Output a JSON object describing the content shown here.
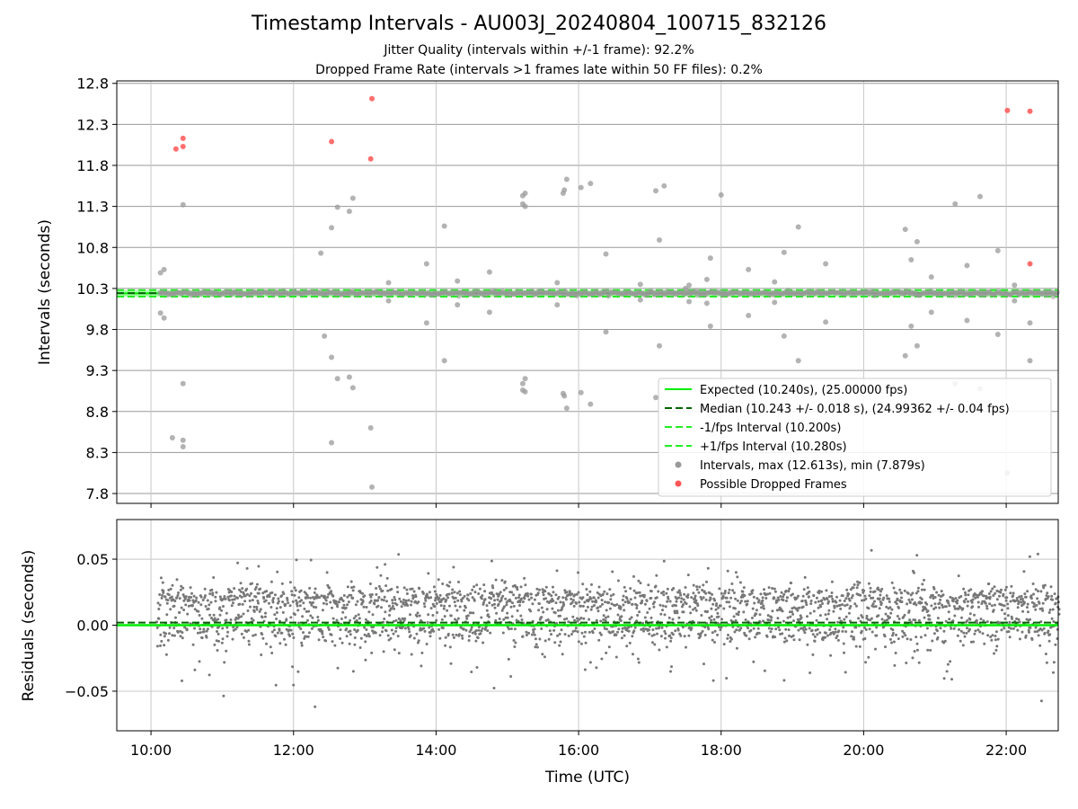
{
  "title": "Timestamp Intervals - AU003J_20240804_100715_832126",
  "subtitle_1": "Jitter Quality (intervals within +/-1 frame): 92.2%",
  "subtitle_2": "Dropped Frame Rate (intervals >1 frames late within 50 FF files): 0.2%",
  "colors": {
    "expected": "#00ee00",
    "median": "#006400",
    "interval_band": "#22ee22",
    "intervals": "#999999",
    "dropped": "#ff5555",
    "residuals": "#777777"
  },
  "chart_data": [
    {
      "type": "scatter",
      "ylabel": "Intervals (seconds)",
      "xlabel": "",
      "ylim": [
        7.68,
        12.83
      ],
      "xlim_hours": [
        9.52,
        22.73
      ],
      "x_ticks": [
        "10:00",
        "12:00",
        "14:00",
        "16:00",
        "18:00",
        "20:00",
        "22:00"
      ],
      "y_ticks": [
        "7.8",
        "8.3",
        "8.8",
        "9.3",
        "9.8",
        "10.3",
        "10.8",
        "11.3",
        "11.8",
        "12.3",
        "12.8"
      ],
      "grid": true,
      "legend_position": "bottom-right",
      "legend": [
        "Expected (10.240s), (25.00000 fps)",
        "Median (10.243 +/- 0.018 s), (24.99362 +/- 0.04 fps)",
        "-1/fps Interval (10.200s)",
        "+1/fps Interval (10.280s)",
        "Intervals, max (12.613s), min (7.879s)",
        "Possible Dropped Frames"
      ],
      "lines": {
        "expected": 10.24,
        "median": 10.243,
        "minus_one_fps": 10.2,
        "plus_one_fps": 10.28
      },
      "outlier_intervals": [
        {
          "x": "10:08",
          "y": 10.49
        },
        {
          "x": "10:11",
          "y": 10.53
        },
        {
          "x": "10:08",
          "y": 10.0
        },
        {
          "x": "10:11",
          "y": 9.94
        },
        {
          "x": "10:27",
          "y": 11.32
        },
        {
          "x": "10:27",
          "y": 9.14
        },
        {
          "x": "10:18",
          "y": 8.48
        },
        {
          "x": "10:27",
          "y": 8.45
        },
        {
          "x": "10:27",
          "y": 8.37
        },
        {
          "x": "12:23",
          "y": 10.73
        },
        {
          "x": "12:26",
          "y": 9.72
        },
        {
          "x": "12:32",
          "y": 11.04
        },
        {
          "x": "12:37",
          "y": 11.29
        },
        {
          "x": "12:32",
          "y": 9.46
        },
        {
          "x": "12:37",
          "y": 9.2
        },
        {
          "x": "12:47",
          "y": 11.24
        },
        {
          "x": "12:50",
          "y": 11.4
        },
        {
          "x": "12:47",
          "y": 9.22
        },
        {
          "x": "12:50",
          "y": 9.09
        },
        {
          "x": "12:32",
          "y": 8.42
        },
        {
          "x": "13:05",
          "y": 8.6
        },
        {
          "x": "13:06",
          "y": 7.879
        },
        {
          "x": "13:20",
          "y": 10.37
        },
        {
          "x": "13:20",
          "y": 10.15
        },
        {
          "x": "13:52",
          "y": 10.6
        },
        {
          "x": "13:52",
          "y": 9.88
        },
        {
          "x": "14:07",
          "y": 11.06
        },
        {
          "x": "14:07",
          "y": 9.42
        },
        {
          "x": "14:18",
          "y": 10.39
        },
        {
          "x": "14:18",
          "y": 10.1
        },
        {
          "x": "14:45",
          "y": 10.5
        },
        {
          "x": "14:45",
          "y": 10.01
        },
        {
          "x": "15:13",
          "y": 11.43
        },
        {
          "x": "15:15",
          "y": 11.46
        },
        {
          "x": "15:13",
          "y": 11.33
        },
        {
          "x": "15:15",
          "y": 11.3
        },
        {
          "x": "15:13",
          "y": 9.14
        },
        {
          "x": "15:15",
          "y": 9.2
        },
        {
          "x": "15:13",
          "y": 9.06
        },
        {
          "x": "15:15",
          "y": 9.04
        },
        {
          "x": "15:42",
          "y": 10.37
        },
        {
          "x": "15:42",
          "y": 10.1
        },
        {
          "x": "15:47",
          "y": 11.46
        },
        {
          "x": "15:48",
          "y": 11.5
        },
        {
          "x": "15:50",
          "y": 11.63
        },
        {
          "x": "15:47",
          "y": 9.02
        },
        {
          "x": "15:48",
          "y": 8.99
        },
        {
          "x": "15:50",
          "y": 8.84
        },
        {
          "x": "16:02",
          "y": 11.53
        },
        {
          "x": "16:02",
          "y": 9.03
        },
        {
          "x": "16:10",
          "y": 11.58
        },
        {
          "x": "16:10",
          "y": 8.89
        },
        {
          "x": "16:23",
          "y": 10.72
        },
        {
          "x": "16:23",
          "y": 9.77
        },
        {
          "x": "16:52",
          "y": 10.35
        },
        {
          "x": "16:52",
          "y": 10.16
        },
        {
          "x": "17:05",
          "y": 11.49
        },
        {
          "x": "17:12",
          "y": 11.55
        },
        {
          "x": "17:05",
          "y": 8.97
        },
        {
          "x": "17:08",
          "y": 10.89
        },
        {
          "x": "17:08",
          "y": 9.6
        },
        {
          "x": "17:30",
          "y": 10.3
        },
        {
          "x": "17:33",
          "y": 10.34
        },
        {
          "x": "17:33",
          "y": 10.14
        },
        {
          "x": "17:48",
          "y": 10.41
        },
        {
          "x": "17:48",
          "y": 10.12
        },
        {
          "x": "17:51",
          "y": 10.67
        },
        {
          "x": "17:51",
          "y": 9.84
        },
        {
          "x": "18:00",
          "y": 11.44
        },
        {
          "x": "18:23",
          "y": 10.53
        },
        {
          "x": "18:23",
          "y": 9.97
        },
        {
          "x": "18:45",
          "y": 10.38
        },
        {
          "x": "18:45",
          "y": 10.13
        },
        {
          "x": "18:53",
          "y": 10.74
        },
        {
          "x": "18:53",
          "y": 9.72
        },
        {
          "x": "19:05",
          "y": 11.05
        },
        {
          "x": "19:05",
          "y": 9.42
        },
        {
          "x": "19:28",
          "y": 10.6
        },
        {
          "x": "19:28",
          "y": 9.89
        },
        {
          "x": "20:35",
          "y": 11.02
        },
        {
          "x": "20:40",
          "y": 10.65
        },
        {
          "x": "20:45",
          "y": 10.87
        },
        {
          "x": "20:35",
          "y": 9.48
        },
        {
          "x": "20:40",
          "y": 9.84
        },
        {
          "x": "20:45",
          "y": 9.6
        },
        {
          "x": "20:57",
          "y": 10.44
        },
        {
          "x": "20:57",
          "y": 10.01
        },
        {
          "x": "21:17",
          "y": 11.33
        },
        {
          "x": "21:17",
          "y": 9.14
        },
        {
          "x": "21:27",
          "y": 10.58
        },
        {
          "x": "21:27",
          "y": 9.91
        },
        {
          "x": "21:38",
          "y": 11.42
        },
        {
          "x": "21:38",
          "y": 9.08
        },
        {
          "x": "21:53",
          "y": 10.76
        },
        {
          "x": "21:53",
          "y": 9.74
        },
        {
          "x": "22:07",
          "y": 10.34
        },
        {
          "x": "22:07",
          "y": 10.15
        },
        {
          "x": "22:01",
          "y": 8.05
        },
        {
          "x": "22:20",
          "y": 9.88
        },
        {
          "x": "22:20",
          "y": 9.42
        }
      ],
      "dropped_frames": [
        {
          "x": "10:21",
          "y": 12.0
        },
        {
          "x": "10:27",
          "y": 12.13
        },
        {
          "x": "10:27",
          "y": 12.03
        },
        {
          "x": "12:32",
          "y": 12.09
        },
        {
          "x": "13:06",
          "y": 12.613
        },
        {
          "x": "13:05",
          "y": 11.88
        },
        {
          "x": "22:01",
          "y": 12.47
        },
        {
          "x": "22:20",
          "y": 12.46
        },
        {
          "x": "22:20",
          "y": 10.6
        }
      ]
    },
    {
      "type": "scatter",
      "ylabel": "Residuals (seconds)",
      "xlabel": "Time (UTC)",
      "ylim": [
        -0.08,
        0.08
      ],
      "xlim_hours": [
        9.52,
        22.73
      ],
      "x_ticks": [
        "10:00",
        "12:00",
        "14:00",
        "16:00",
        "18:00",
        "20:00",
        "22:00"
      ],
      "y_ticks": [
        "0.05",
        "0.00",
        "−0.05"
      ],
      "grid": true,
      "lines": {
        "zero": 0.0,
        "median_offset": 0.002
      },
      "residual_points": {
        "x_range": [
          "10:05",
          "22:45"
        ],
        "count": 2600,
        "mean": 0.003,
        "std": 0.018,
        "max": 0.063,
        "min": -0.062
      }
    }
  ]
}
